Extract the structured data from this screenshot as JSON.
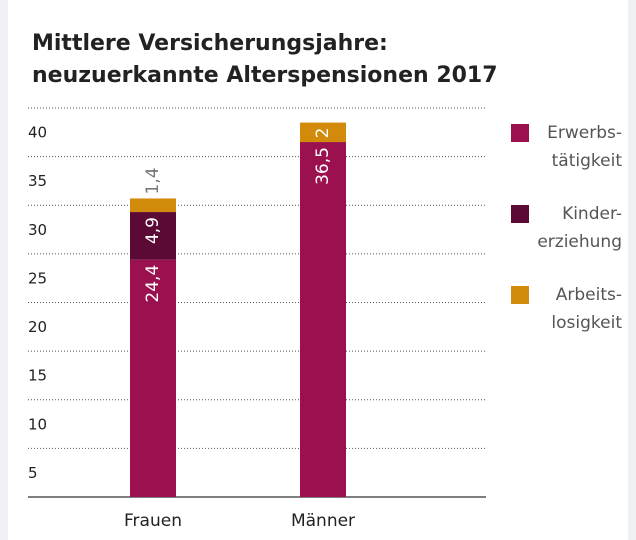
{
  "chart_data": {
    "type": "stacked_bar",
    "title": [
      "Mittlere Versicherungsjahre:",
      "neuzuerkannte Alterspensionen 2017"
    ],
    "categories": [
      "Frauen",
      "Männer"
    ],
    "series": [
      {
        "name": "Erwerbs-tätigkeit",
        "color": "#9b1150",
        "values": [
          24.4,
          36.5
        ],
        "value_labels": [
          "24,4",
          "36,5"
        ]
      },
      {
        "name": "Kinder-erziehung",
        "color": "#5b0a35",
        "values": [
          4.9,
          null
        ],
        "value_labels": [
          "4,9",
          null
        ]
      },
      {
        "name": "Arbeits-losigkeit",
        "color": "#d18a0a",
        "values": [
          1.4,
          2
        ],
        "value_labels": [
          "1,4",
          "2"
        ]
      }
    ],
    "ylim": [
      0,
      40
    ],
    "yticks": [
      5,
      10,
      15,
      20,
      25,
      30,
      35,
      40
    ],
    "grid": true,
    "legend": "right"
  }
}
